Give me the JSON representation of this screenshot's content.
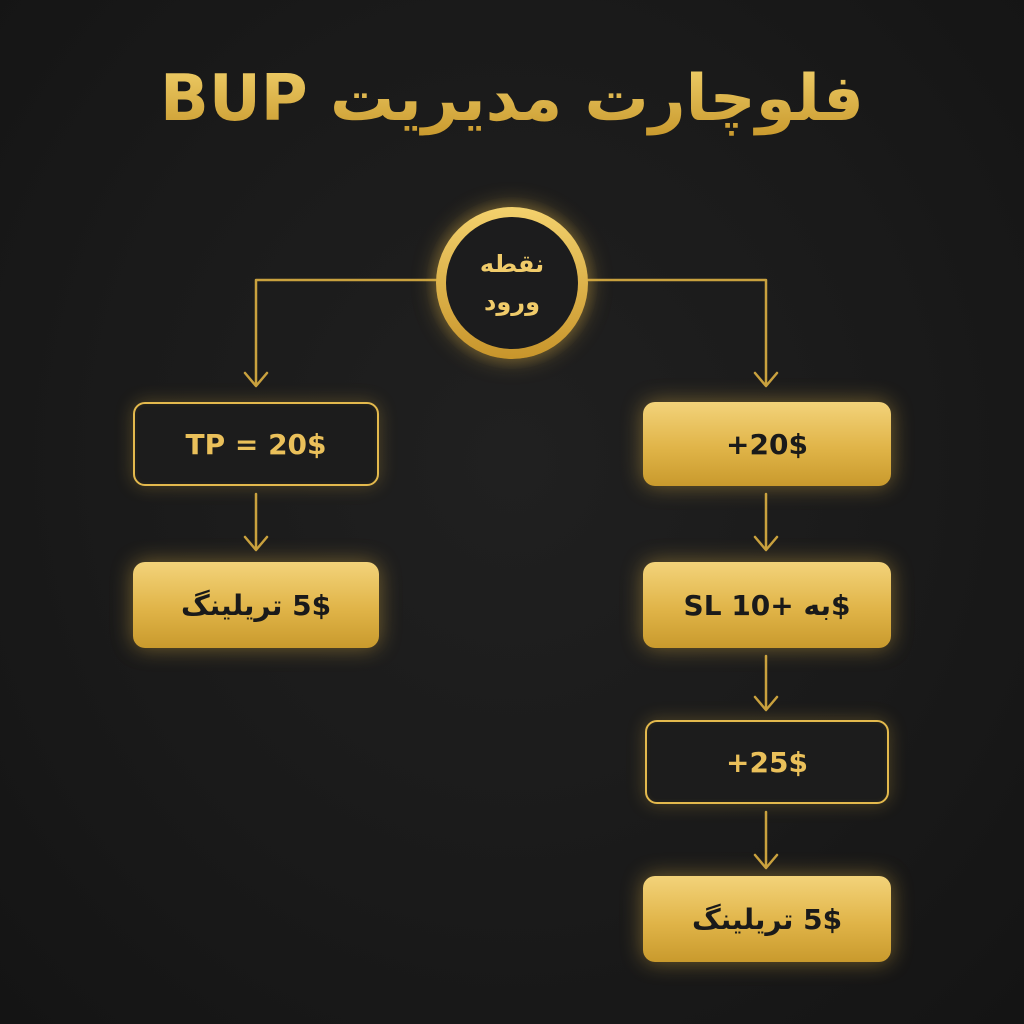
{
  "title": "فلوچارت مدیریت BUP",
  "entry": {
    "label": "نقطه\nورود"
  },
  "left_branch": [
    {
      "label": "TP = 20$",
      "style": "outline"
    },
    {
      "label": "5$ تریلینگ",
      "style": "filled"
    }
  ],
  "right_branch": [
    {
      "label": "+20$",
      "style": "filled"
    },
    {
      "label": "SL به +10$",
      "style": "filled"
    },
    {
      "label": "+25$",
      "style": "outline"
    },
    {
      "label": "5$ تریلینگ",
      "style": "filled"
    }
  ],
  "colors": {
    "background": "#1b1b1b",
    "gold": "#e3b94d",
    "gold_light": "#f3d37a",
    "dark_text": "#1a1a1a"
  }
}
